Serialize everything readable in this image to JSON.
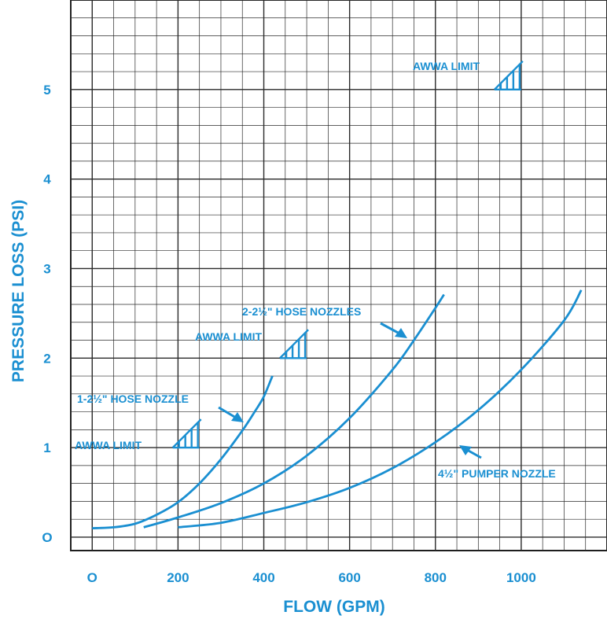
{
  "chart_data": {
    "type": "line",
    "title": "",
    "xlabel": "FLOW (GPM)",
    "ylabel": "PRESSURE LOSS (PSI)",
    "xlim": [
      -50,
      1200
    ],
    "ylim": [
      -0.15,
      6
    ],
    "xticks": [
      0,
      200,
      400,
      600,
      800,
      1000
    ],
    "xtick_labels": [
      "O",
      "200",
      "400",
      "600",
      "800",
      "1000"
    ],
    "yticks": [
      0,
      1,
      2,
      3,
      4,
      5
    ],
    "ytick_labels": [
      "O",
      "1",
      "2",
      "3",
      "4",
      "5"
    ],
    "grid": true,
    "series": [
      {
        "name": "1-2½\" HOSE NOZZLE",
        "x": [
          0,
          50,
          100,
          150,
          200,
          250,
          300,
          350,
          380,
          400,
          420
        ],
        "y": [
          0.1,
          0.11,
          0.15,
          0.25,
          0.39,
          0.6,
          0.87,
          1.19,
          1.41,
          1.57,
          1.8
        ]
      },
      {
        "name": "2-2½\" HOSE NOZZLES",
        "x": [
          120,
          200,
          300,
          400,
          500,
          600,
          700,
          750,
          800,
          820
        ],
        "y": [
          0.11,
          0.22,
          0.38,
          0.6,
          0.91,
          1.33,
          1.87,
          2.2,
          2.56,
          2.71
        ]
      },
      {
        "name": "4½\" PUMPER NOZZLE",
        "x": [
          200,
          300,
          400,
          500,
          600,
          700,
          800,
          900,
          1000,
          1100,
          1140
        ],
        "y": [
          0.11,
          0.16,
          0.27,
          0.39,
          0.55,
          0.77,
          1.06,
          1.42,
          1.87,
          2.42,
          2.76
        ]
      }
    ],
    "annotations": [
      {
        "id": "limit-1",
        "text": "AWWA LIMIT",
        "x": 250,
        "y": 1.0
      },
      {
        "id": "limit-2",
        "text": "AWWA LIMIT",
        "x": 500,
        "y": 2.0
      },
      {
        "id": "limit-3",
        "text": "AWWA LIMIT",
        "x": 1000,
        "y": 5.0
      }
    ]
  }
}
